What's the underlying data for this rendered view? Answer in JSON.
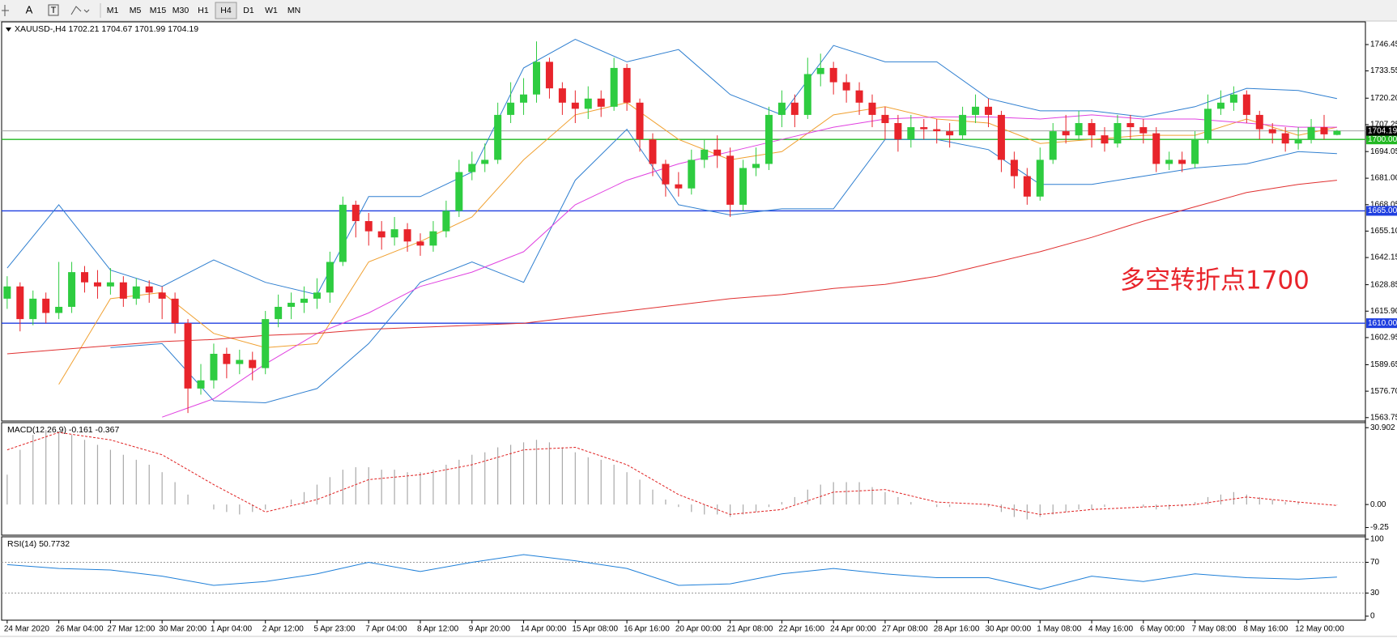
{
  "toolbar": {
    "tools": [
      "A",
      "T"
    ],
    "timeframes": [
      "M1",
      "M5",
      "M15",
      "M30",
      "H1",
      "H4",
      "D1",
      "W1",
      "MN"
    ],
    "active": "H4"
  },
  "chart_data": [
    {
      "type": "candlestick",
      "title": "XAUUSD-,H4  1702.21 1704.67 1701.99 1704.19",
      "annotation": "多空转折点1700",
      "up_color": "#2ecc40",
      "down_color": "#e8242b",
      "xlim": [
        -0.43,
        105.2
      ],
      "xticks": [
        {
          "value": 0,
          "label": "24 Mar 2020"
        },
        {
          "value": 4,
          "label": "26 Mar 04:00"
        },
        {
          "value": 8,
          "label": "27 Mar 12:00"
        },
        {
          "value": 12,
          "label": "30 Mar 20:00"
        },
        {
          "value": 16,
          "label": "1 Apr 04:00"
        },
        {
          "value": 20,
          "label": "2 Apr 12:00"
        },
        {
          "value": 24,
          "label": "5 Apr 23:00"
        },
        {
          "value": 28,
          "label": "7 Apr 04:00"
        },
        {
          "value": 32,
          "label": "8 Apr 12:00"
        },
        {
          "value": 36,
          "label": "9 Apr 20:00"
        },
        {
          "value": 40,
          "label": "14 Apr 00:00"
        },
        {
          "value": 44,
          "label": "15 Apr 08:00"
        },
        {
          "value": 48,
          "label": "16 Apr 16:00"
        },
        {
          "value": 52,
          "label": "20 Apr 00:00"
        },
        {
          "value": 56,
          "label": "21 Apr 08:00"
        },
        {
          "value": 60,
          "label": "22 Apr 16:00"
        },
        {
          "value": 64,
          "label": "24 Apr 00:00"
        },
        {
          "value": 68,
          "label": "27 Apr 08:00"
        },
        {
          "value": 72,
          "label": "28 Apr 16:00"
        },
        {
          "value": 76,
          "label": "30 Apr 00:00"
        },
        {
          "value": 80,
          "label": "1 May 08:00"
        },
        {
          "value": 84,
          "label": "4 May 16:00"
        },
        {
          "value": 88,
          "label": "6 May 00:00"
        },
        {
          "value": 92,
          "label": "7 May 08:00"
        },
        {
          "value": 96,
          "label": "8 May 16:00"
        },
        {
          "value": 100,
          "label": "12 May 00:00"
        }
      ],
      "ylim": [
        1562.4,
        1756.5
      ],
      "yticks": [
        1746.45,
        1733.55,
        {
          "value": 1720.2,
          "label": "1720.20"
        },
        1707.25,
        1694.05,
        {
          "value": 1681,
          "label": "1681.00"
        },
        1668.05,
        {
          "value": 1655.1,
          "label": "1655.10"
        },
        1642.15,
        1628.85,
        {
          "value": 1615.9,
          "label": "1615.90"
        },
        1602.95,
        1589.65,
        {
          "value": 1576.7,
          "label": "1576.70"
        },
        1563.75
      ],
      "open": [
        1622,
        1628,
        1612,
        1622,
        1615,
        1618,
        1635,
        1630,
        1628,
        1630,
        1622,
        1628,
        1625,
        1622,
        1610,
        1578,
        1582,
        1595,
        1590,
        1592,
        1588,
        1612,
        1618,
        1620,
        1622,
        1625,
        1640,
        1668,
        1660,
        1655,
        1652,
        1656,
        1650,
        1648,
        1655,
        1665,
        1684,
        1688,
        1690,
        1712,
        1718,
        1722,
        1738,
        1725,
        1718,
        1715,
        1720,
        1716,
        1735,
        1718,
        1700,
        1688,
        1678,
        1676,
        1690,
        1695,
        1692,
        1668,
        1686,
        1688,
        1712,
        1718,
        1712,
        1732,
        1735,
        1728,
        1724,
        1718,
        1712,
        1708,
        1700,
        1706,
        1705,
        1704,
        1702,
        1712,
        1716,
        1712,
        1690,
        1682,
        1672,
        1690,
        1704,
        1702,
        1708,
        1702,
        1698,
        1708,
        1706,
        1703,
        1688,
        1690,
        1688,
        1700,
        1715,
        1718,
        1722,
        1712,
        1705,
        1703,
        1698,
        1700,
        1706,
        1702.21
      ],
      "high": [
        1633,
        1630,
        1626,
        1625,
        1640,
        1640,
        1638,
        1636,
        1637,
        1633,
        1632,
        1631,
        1628,
        1625,
        1612,
        1590,
        1600,
        1598,
        1597,
        1596,
        1616,
        1624,
        1625,
        1628,
        1632,
        1645,
        1672,
        1670,
        1664,
        1660,
        1662,
        1659,
        1654,
        1660,
        1670,
        1690,
        1694,
        1698,
        1718,
        1728,
        1730,
        1748,
        1740,
        1728,
        1724,
        1726,
        1724,
        1740,
        1737,
        1720,
        1703,
        1690,
        1684,
        1695,
        1700,
        1702,
        1696,
        1690,
        1696,
        1716,
        1724,
        1722,
        1740,
        1742,
        1738,
        1732,
        1728,
        1722,
        1716,
        1712,
        1712,
        1710,
        1710,
        1708,
        1716,
        1722,
        1720,
        1714,
        1694,
        1686,
        1696,
        1708,
        1712,
        1714,
        1710,
        1706,
        1712,
        1712,
        1710,
        1706,
        1694,
        1694,
        1704,
        1722,
        1724,
        1726,
        1724,
        1714,
        1708,
        1706,
        1706,
        1710,
        1712,
        1704.67
      ],
      "low": [
        1617,
        1606,
        1609,
        1610,
        1612,
        1615,
        1625,
        1622,
        1624,
        1618,
        1619,
        1620,
        1612,
        1605,
        1566,
        1575,
        1578,
        1583,
        1585,
        1582,
        1585,
        1608,
        1612,
        1615,
        1617,
        1620,
        1638,
        1652,
        1648,
        1646,
        1648,
        1645,
        1643,
        1645,
        1652,
        1662,
        1680,
        1684,
        1688,
        1708,
        1712,
        1718,
        1720,
        1712,
        1708,
        1710,
        1711,
        1714,
        1714,
        1694,
        1682,
        1672,
        1672,
        1673,
        1686,
        1686,
        1662,
        1665,
        1682,
        1685,
        1706,
        1706,
        1710,
        1726,
        1722,
        1718,
        1712,
        1706,
        1700,
        1694,
        1696,
        1700,
        1698,
        1696,
        1700,
        1708,
        1706,
        1684,
        1676,
        1668,
        1670,
        1688,
        1698,
        1700,
        1696,
        1694,
        1696,
        1700,
        1698,
        1684,
        1685,
        1684,
        1686,
        1698,
        1712,
        1714,
        1708,
        1700,
        1698,
        1694,
        1695,
        1698,
        1700,
        1701.99
      ],
      "close": [
        1628,
        1612,
        1622,
        1615,
        1618,
        1635,
        1630,
        1628,
        1630,
        1622,
        1628,
        1625,
        1622,
        1610,
        1578,
        1582,
        1595,
        1590,
        1592,
        1588,
        1612,
        1618,
        1620,
        1622,
        1625,
        1640,
        1668,
        1660,
        1655,
        1652,
        1656,
        1650,
        1648,
        1655,
        1665,
        1684,
        1688,
        1690,
        1712,
        1718,
        1722,
        1738,
        1725,
        1718,
        1715,
        1720,
        1716,
        1735,
        1718,
        1700,
        1688,
        1678,
        1676,
        1690,
        1695,
        1692,
        1668,
        1686,
        1688,
        1712,
        1718,
        1712,
        1732,
        1735,
        1728,
        1724,
        1718,
        1712,
        1708,
        1700,
        1706,
        1705,
        1704,
        1702,
        1712,
        1716,
        1712,
        1690,
        1682,
        1672,
        1690,
        1704,
        1702,
        1708,
        1702,
        1698,
        1708,
        1706,
        1703,
        1688,
        1690,
        1688,
        1700,
        1715,
        1718,
        1722,
        1712,
        1705,
        1703,
        1698,
        1700,
        1706,
        1702.5,
        1704.19
      ],
      "overlays": [
        {
          "color": "#2f7fd0",
          "x": [
            0,
            4,
            8,
            12,
            16,
            20,
            24,
            28,
            32,
            36,
            40,
            44,
            48,
            52,
            56,
            60,
            64,
            68,
            72,
            76,
            80,
            84,
            88,
            92,
            96,
            100,
            103
          ],
          "values": [
            1637,
            1668,
            1636,
            1628,
            1641,
            1630,
            1624,
            1672,
            1672,
            1684,
            1735,
            1749,
            1738,
            1744,
            1722,
            1712,
            1746,
            1738,
            1738,
            1720,
            1714,
            1714,
            1711,
            1716,
            1725,
            1724,
            1720
          ]
        },
        {
          "color": "#2f7fd0",
          "x": [
            0,
            4,
            8,
            12,
            16,
            20,
            24,
            28,
            32,
            36,
            40,
            44,
            48,
            52,
            56,
            60,
            64,
            68,
            72,
            76,
            80,
            84,
            88,
            92,
            96,
            100,
            103
          ],
          "values": [
            null,
            null,
            1598,
            1600,
            1572,
            1571,
            1578,
            1600,
            1630,
            1640,
            1630,
            1680,
            1705,
            1668,
            1663,
            1666,
            1666,
            1700,
            1700,
            1695,
            1678,
            1678,
            1682,
            1686,
            1688,
            1694,
            1693
          ]
        },
        {
          "color": "#f0a030",
          "x": [
            0,
            4,
            8,
            12,
            16,
            20,
            24,
            28,
            32,
            36,
            40,
            44,
            48,
            52,
            56,
            60,
            64,
            68,
            72,
            76,
            80,
            84,
            88,
            92,
            96,
            100,
            103
          ],
          "values": [
            null,
            1580,
            1622,
            1625,
            1605,
            1598,
            1600,
            1640,
            1650,
            1662,
            1690,
            1712,
            1718,
            1700,
            1690,
            1694,
            1712,
            1716,
            1710,
            1708,
            1698,
            1700,
            1702,
            1702,
            1710,
            1702,
            1706
          ]
        },
        {
          "color": "#e040e0",
          "x": [
            0,
            4,
            8,
            12,
            16,
            20,
            24,
            28,
            32,
            36,
            40,
            44,
            48,
            52,
            56,
            60,
            64,
            68,
            72,
            76,
            80,
            84,
            88,
            92,
            96,
            100,
            103
          ],
          "values": [
            null,
            null,
            null,
            1564,
            1573,
            1590,
            1605,
            1615,
            1628,
            1635,
            1645,
            1668,
            1680,
            1688,
            1694,
            1700,
            1706,
            1710,
            1711,
            1711,
            1710,
            1712,
            1710,
            1710,
            1708,
            1706,
            1706
          ]
        },
        {
          "color": "#e03030",
          "x": [
            0,
            4,
            8,
            12,
            16,
            20,
            24,
            28,
            32,
            36,
            40,
            44,
            48,
            52,
            56,
            60,
            64,
            68,
            72,
            76,
            80,
            84,
            88,
            92,
            96,
            100,
            103
          ],
          "values": [
            1595,
            1597,
            1599,
            1601,
            1602,
            1604,
            1605,
            1607,
            1608,
            1609,
            1610,
            1613,
            1616,
            1619,
            1622,
            1624,
            1627,
            1629,
            1633,
            1639,
            1645,
            1652,
            1660,
            1667,
            1674,
            1678,
            1680
          ]
        }
      ],
      "levels": [
        {
          "value": 1700,
          "label": "1700.00",
          "color": "#22b822"
        },
        {
          "value": 1665,
          "label": "1665.00",
          "color": "#1f3fe0"
        },
        {
          "value": 1610,
          "label": "1610.00",
          "color": "#1f3fe0"
        }
      ],
      "last_price": {
        "value": 1704.19,
        "label": "1704.19",
        "color": "#a0a0a0"
      }
    },
    {
      "type": "macd",
      "title": "MACD(12,26,9) -0.161 -0.367",
      "ylim": [
        -12,
        32.6
      ],
      "yticks": [
        30.902,
        {
          "value": 0,
          "label": "0.00"
        },
        -9.25
      ],
      "color": "#a9a9a9",
      "values": [
        12,
        22,
        28,
        30,
        29,
        28,
        26,
        24,
        22,
        20,
        18,
        16,
        13,
        9,
        4,
        0,
        -2,
        -3,
        -4,
        -3,
        -2,
        0,
        2,
        5,
        8,
        11,
        14,
        15,
        15,
        14,
        14,
        13,
        13,
        14,
        16,
        18,
        20,
        21,
        23,
        24,
        25,
        26,
        25,
        23,
        21,
        19,
        18,
        16,
        13,
        10,
        6,
        2,
        -1,
        -3,
        -4,
        -4,
        -5,
        -4,
        -3,
        -1,
        1,
        3,
        6,
        8,
        9,
        9,
        9,
        7,
        5,
        3,
        1,
        0,
        -1,
        -1,
        0,
        0,
        -1,
        -3,
        -5,
        -6,
        -5,
        -4,
        -3,
        -2,
        -2,
        -1,
        0,
        0,
        -1,
        -2,
        -2,
        -1,
        1,
        3,
        4,
        5,
        4,
        3,
        2,
        1,
        1,
        0,
        0,
        -0.161
      ],
      "signal": {
        "color": "#e02020",
        "x": [
          0,
          4,
          8,
          12,
          16,
          20,
          24,
          28,
          32,
          36,
          40,
          44,
          48,
          52,
          56,
          60,
          64,
          68,
          72,
          76,
          80,
          84,
          88,
          92,
          96,
          100,
          103
        ],
        "values": [
          22,
          29,
          26,
          20,
          8,
          -3,
          2,
          10,
          12,
          16,
          22,
          23,
          16,
          4,
          -4,
          -2,
          5,
          6,
          1,
          0,
          -4,
          -2,
          -1,
          0,
          3,
          1,
          -0.367
        ]
      }
    },
    {
      "type": "line",
      "title": "RSI(14) 50.7732",
      "ylim": [
        0,
        100
      ],
      "yticks": [
        100,
        70,
        30,
        0
      ],
      "series": [
        {
          "color": "#1e7fd8",
          "x": [
            0,
            4,
            8,
            12,
            16,
            20,
            24,
            28,
            32,
            36,
            40,
            44,
            48,
            52,
            56,
            60,
            64,
            68,
            72,
            76,
            80,
            84,
            88,
            92,
            96,
            100,
            103
          ],
          "values": [
            67,
            62,
            60,
            52,
            40,
            45,
            55,
            70,
            58,
            70,
            80,
            72,
            62,
            40,
            42,
            55,
            62,
            55,
            50,
            50,
            35,
            52,
            45,
            55,
            50,
            48,
            50.7732
          ]
        }
      ]
    }
  ]
}
